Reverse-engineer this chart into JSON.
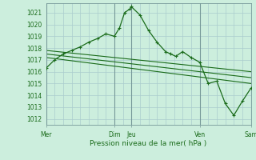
{
  "background_color": "#cceedd",
  "grid_color": "#aacccc",
  "line_color": "#1a6b1a",
  "xlabel": "Pression niveau de la mer( hPa )",
  "ylim": [
    1011.5,
    1021.8
  ],
  "yticks": [
    1012,
    1013,
    1014,
    1015,
    1016,
    1017,
    1018,
    1019,
    1020,
    1021
  ],
  "xtick_labels": [
    "Mer",
    "Dim",
    "Jeu",
    "Ven",
    "Sam"
  ],
  "xtick_positions": [
    0,
    4,
    5,
    9,
    12
  ],
  "vlines": [
    0,
    4,
    5,
    9,
    12
  ],
  "series1": {
    "x": [
      0,
      0.5,
      1.0,
      1.5,
      2.0,
      2.5,
      3.0,
      3.5,
      4.0,
      4.3,
      4.6,
      4.9,
      5.0,
      5.5,
      6.0,
      6.5,
      7.0,
      7.3,
      7.6,
      8.0,
      8.5,
      9.0,
      9.5,
      10.0,
      10.5,
      11.0,
      11.5,
      12.0
    ],
    "y": [
      1016.3,
      1017.0,
      1017.5,
      1017.8,
      1018.1,
      1018.5,
      1018.8,
      1019.2,
      1019.0,
      1019.7,
      1021.0,
      1021.3,
      1021.5,
      1020.8,
      1019.5,
      1018.5,
      1017.7,
      1017.5,
      1017.3,
      1017.7,
      1017.2,
      1016.8,
      1015.0,
      1015.2,
      1013.3,
      1012.3,
      1013.5,
      1014.6
    ]
  },
  "series2": {
    "x": [
      0,
      12
    ],
    "y": [
      1017.8,
      1016.0
    ]
  },
  "series3": {
    "x": [
      0,
      12
    ],
    "y": [
      1017.5,
      1015.5
    ]
  },
  "series4": {
    "x": [
      0,
      12
    ],
    "y": [
      1017.2,
      1015.0
    ]
  },
  "figsize": [
    3.2,
    2.0
  ],
  "dpi": 100
}
